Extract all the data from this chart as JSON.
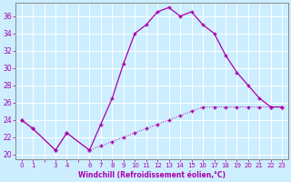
{
  "xlabel": "Windchill (Refroidissement éolien,°C)",
  "background_color": "#cceeff",
  "line_color": "#aa00aa",
  "grid_color": "#aadddd",
  "spine_color": "#888888",
  "xlim": [
    -0.5,
    23.5
  ],
  "ylim": [
    19.5,
    37.5
  ],
  "yticks": [
    20,
    22,
    24,
    26,
    28,
    30,
    32,
    34,
    36
  ],
  "xtick_labels": [
    "0",
    "1",
    "",
    "3",
    "4",
    "",
    "6",
    "7",
    "8",
    "9",
    "10",
    "11",
    "12",
    "13",
    "14",
    "15",
    "16",
    "17",
    "18",
    "19",
    "20",
    "21",
    "22",
    "23"
  ],
  "hours_wc": [
    0,
    1,
    3,
    4,
    6,
    7,
    8,
    9,
    10,
    11,
    12,
    13,
    14,
    15,
    16,
    17,
    18,
    19,
    20,
    21,
    22,
    23
  ],
  "windchill": [
    24,
    23,
    20.5,
    22.5,
    20.5,
    23.5,
    26.5,
    30.5,
    34,
    35,
    36.5,
    37,
    36,
    36.5,
    35,
    34,
    31.5,
    29.5,
    28,
    26.5,
    25.5,
    25.5
  ],
  "hours_tf": [
    0,
    1,
    3,
    4,
    6,
    7,
    8,
    9,
    10,
    11,
    12,
    13,
    14,
    15,
    16,
    17,
    18,
    19,
    20,
    21,
    22,
    23
  ],
  "temp": [
    24,
    23,
    20.5,
    22.5,
    20.5,
    21,
    21.5,
    22,
    22.5,
    23,
    23.5,
    24,
    24.5,
    25,
    25.5,
    25.5,
    25.5,
    25.5,
    25.5,
    25.5,
    25.5,
    25.5
  ]
}
